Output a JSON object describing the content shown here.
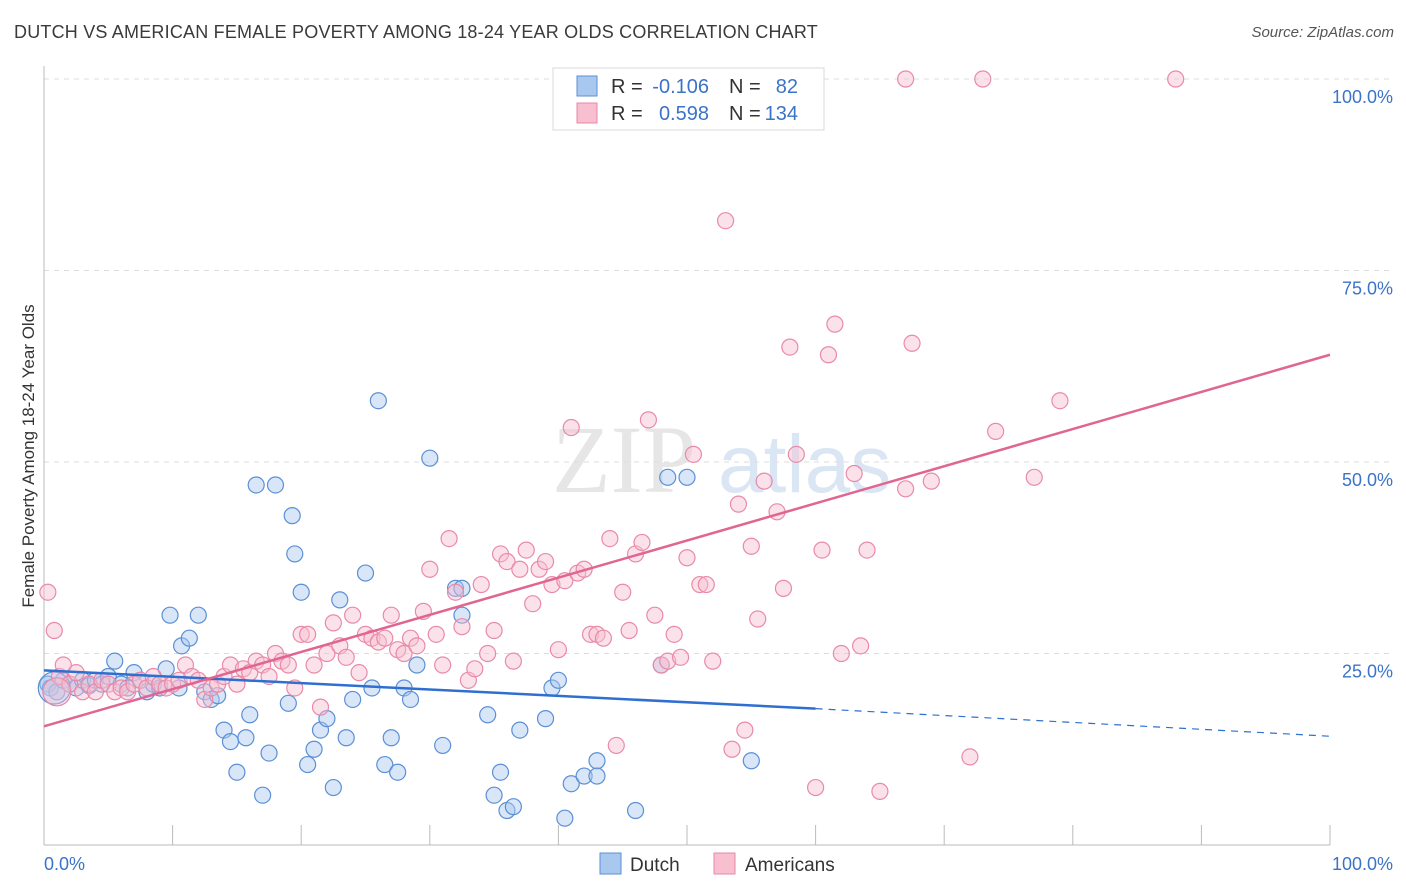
{
  "title": "DUTCH VS AMERICAN FEMALE POVERTY AMONG 18-24 YEAR OLDS CORRELATION CHART",
  "source": "Source: ZipAtlas.com",
  "watermark": {
    "zip": "ZIP",
    "atlas": "atlas"
  },
  "colors": {
    "dutch_fill": "#a9c8f0",
    "dutch_stroke": "#5b8fd6",
    "dutch_line": "#2f6fd0",
    "american_fill": "#f7bfd0",
    "american_stroke": "#e98aa8",
    "american_line": "#e06592",
    "axis_text": "#3b73c9",
    "grid": "#dddddd"
  },
  "legend": {
    "rows": [
      {
        "r_label": "R =",
        "r_value": "-0.106",
        "n_label": "N =",
        "n_value": "82"
      },
      {
        "r_label": "R =",
        "r_value": "0.598",
        "n_label": "N =",
        "n_value": "134"
      }
    ]
  },
  "bottom_legend": [
    "Dutch",
    "Americans"
  ],
  "chart_data": {
    "type": "scatter",
    "title": "DUTCH VS AMERICAN FEMALE POVERTY AMONG 18-24 YEAR OLDS CORRELATION CHART",
    "ylabel": "Female Poverty Among 18-24 Year Olds",
    "xlabel": "",
    "xlim": [
      0,
      100
    ],
    "ylim": [
      0,
      100
    ],
    "x_tick_labels": [
      "0.0%",
      "100.0%"
    ],
    "y_ticks": [
      25,
      50,
      75,
      100
    ],
    "y_tick_labels": [
      "25.0%",
      "50.0%",
      "75.0%",
      "100.0%"
    ],
    "grid": true,
    "legend_position": "top-center",
    "series": [
      {
        "name": "Dutch",
        "r": -0.106,
        "n": 82,
        "trend": {
          "x0": 0,
          "y0": 22.8,
          "x1": 60,
          "y1": 17.8,
          "dashed_to_x": 100,
          "dashed_to_y": 14.2
        },
        "points": [
          [
            0.3,
            21
          ],
          [
            0.5,
            20.5
          ],
          [
            1,
            20
          ],
          [
            1.5,
            21.5
          ],
          [
            2,
            21
          ],
          [
            2.5,
            20.5
          ],
          [
            3,
            21.5
          ],
          [
            3.5,
            20.8
          ],
          [
            4,
            21.5
          ],
          [
            4.5,
            21
          ],
          [
            5,
            22
          ],
          [
            5.5,
            24
          ],
          [
            6,
            21
          ],
          [
            6.5,
            20.5
          ],
          [
            7,
            22.5
          ],
          [
            7.5,
            21.5
          ],
          [
            8,
            20
          ],
          [
            8.5,
            21
          ],
          [
            9,
            20.5
          ],
          [
            9.5,
            23
          ],
          [
            9.8,
            30
          ],
          [
            10.5,
            20.5
          ],
          [
            10.7,
            26
          ],
          [
            11.3,
            27
          ],
          [
            12.5,
            20
          ],
          [
            12,
            30
          ],
          [
            13,
            19
          ],
          [
            13.5,
            19.5
          ],
          [
            14,
            15
          ],
          [
            14.5,
            13.5
          ],
          [
            15,
            9.5
          ],
          [
            15.7,
            14
          ],
          [
            16,
            17
          ],
          [
            16.5,
            47
          ],
          [
            17,
            6.5
          ],
          [
            17.5,
            12
          ],
          [
            18,
            47
          ],
          [
            19,
            18.5
          ],
          [
            19.3,
            43
          ],
          [
            19.5,
            38
          ],
          [
            20,
            33
          ],
          [
            20.5,
            10.5
          ],
          [
            21,
            12.5
          ],
          [
            21.5,
            15
          ],
          [
            22,
            16.5
          ],
          [
            22.5,
            7.5
          ],
          [
            23,
            32
          ],
          [
            23.5,
            14
          ],
          [
            24,
            19
          ],
          [
            25,
            35.5
          ],
          [
            25.5,
            20.5
          ],
          [
            26,
            58
          ],
          [
            26.5,
            10.5
          ],
          [
            27,
            14
          ],
          [
            27.5,
            9.5
          ],
          [
            28,
            20.5
          ],
          [
            28.5,
            19
          ],
          [
            29,
            23.5
          ],
          [
            30,
            50.5
          ],
          [
            31,
            13
          ],
          [
            32,
            33.5
          ],
          [
            32.5,
            33.5
          ],
          [
            32.5,
            30
          ],
          [
            34.5,
            17
          ],
          [
            35,
            6.5
          ],
          [
            35.5,
            9.5
          ],
          [
            36,
            4.5
          ],
          [
            37,
            15
          ],
          [
            39,
            16.5
          ],
          [
            39.5,
            20.5
          ],
          [
            40,
            21.5
          ],
          [
            40.5,
            3.5
          ],
          [
            41,
            8
          ],
          [
            42,
            9
          ],
          [
            43,
            11
          ],
          [
            43,
            9
          ],
          [
            46,
            4.5
          ],
          [
            48,
            23.5
          ],
          [
            48.5,
            48
          ],
          [
            50,
            48
          ],
          [
            55,
            11
          ],
          [
            36.5,
            5
          ]
        ]
      },
      {
        "name": "Americans",
        "r": 0.598,
        "n": 134,
        "trend": {
          "x0": 0,
          "y0": 15.5,
          "x1": 100,
          "y1": 64
        },
        "points": [
          [
            0.3,
            33
          ],
          [
            0.8,
            28
          ],
          [
            1.2,
            22
          ],
          [
            1.5,
            23.5
          ],
          [
            2,
            21
          ],
          [
            2.5,
            22.5
          ],
          [
            3,
            20
          ],
          [
            3.5,
            21
          ],
          [
            4,
            20
          ],
          [
            4.5,
            21.5
          ],
          [
            5,
            21
          ],
          [
            5.5,
            20
          ],
          [
            6,
            20.5
          ],
          [
            6.5,
            20
          ],
          [
            7,
            21
          ],
          [
            7.5,
            21.5
          ],
          [
            8,
            20.5
          ],
          [
            8.5,
            22
          ],
          [
            9,
            21
          ],
          [
            9.5,
            20.5
          ],
          [
            10,
            21
          ],
          [
            10.5,
            21.5
          ],
          [
            11,
            23.5
          ],
          [
            11.5,
            22
          ],
          [
            12,
            21.5
          ],
          [
            12.5,
            19
          ],
          [
            13,
            20.5
          ],
          [
            13.5,
            21
          ],
          [
            14,
            22
          ],
          [
            14.5,
            23.5
          ],
          [
            15,
            21
          ],
          [
            15.5,
            23
          ],
          [
            16,
            22.5
          ],
          [
            16.5,
            24
          ],
          [
            17,
            23.5
          ],
          [
            17.5,
            22
          ],
          [
            18,
            25
          ],
          [
            18.5,
            24
          ],
          [
            19,
            23.5
          ],
          [
            19.5,
            20.5
          ],
          [
            20,
            27.5
          ],
          [
            20.5,
            27.5
          ],
          [
            21,
            23.5
          ],
          [
            21.5,
            18
          ],
          [
            22,
            25
          ],
          [
            22.5,
            29
          ],
          [
            23,
            26
          ],
          [
            23.5,
            24.5
          ],
          [
            24,
            30
          ],
          [
            24.5,
            22.5
          ],
          [
            25,
            27.5
          ],
          [
            25.5,
            27
          ],
          [
            26,
            26.5
          ],
          [
            26.5,
            27
          ],
          [
            27,
            30
          ],
          [
            27.5,
            25.5
          ],
          [
            28,
            25
          ],
          [
            28.5,
            27
          ],
          [
            29,
            26
          ],
          [
            29.5,
            30.5
          ],
          [
            30,
            36
          ],
          [
            30.5,
            27.5
          ],
          [
            31,
            23.5
          ],
          [
            31.5,
            40
          ],
          [
            32,
            33
          ],
          [
            32.5,
            28.5
          ],
          [
            33,
            21.5
          ],
          [
            33.5,
            23
          ],
          [
            34,
            34
          ],
          [
            34.5,
            25
          ],
          [
            35,
            28
          ],
          [
            35.5,
            38
          ],
          [
            36,
            37
          ],
          [
            36.5,
            24
          ],
          [
            37,
            36
          ],
          [
            37.5,
            38.5
          ],
          [
            38,
            31.5
          ],
          [
            38.5,
            36
          ],
          [
            39,
            37
          ],
          [
            39.5,
            34
          ],
          [
            40,
            25.5
          ],
          [
            40.5,
            34.5
          ],
          [
            41,
            54.5
          ],
          [
            41.5,
            35.5
          ],
          [
            42,
            36
          ],
          [
            42.5,
            27.5
          ],
          [
            43,
            27.5
          ],
          [
            43.5,
            27
          ],
          [
            44,
            40
          ],
          [
            44.5,
            13
          ],
          [
            45,
            33
          ],
          [
            45.5,
            28
          ],
          [
            46,
            38
          ],
          [
            46.5,
            39.5
          ],
          [
            47,
            55.5
          ],
          [
            47.5,
            30
          ],
          [
            48,
            23.5
          ],
          [
            48.5,
            24
          ],
          [
            49,
            27.5
          ],
          [
            49.5,
            24.5
          ],
          [
            50,
            37.5
          ],
          [
            50.5,
            51
          ],
          [
            51,
            34
          ],
          [
            51.5,
            34
          ],
          [
            52,
            24
          ],
          [
            53,
            81.5
          ],
          [
            53.5,
            12.5
          ],
          [
            54,
            44.5
          ],
          [
            54.5,
            15
          ],
          [
            55,
            39
          ],
          [
            55.5,
            29.5
          ],
          [
            56,
            47.5
          ],
          [
            57,
            43.5
          ],
          [
            57.5,
            33.5
          ],
          [
            58,
            65
          ],
          [
            58.5,
            51
          ],
          [
            60,
            7.5
          ],
          [
            60.5,
            38.5
          ],
          [
            61,
            64
          ],
          [
            61.5,
            68
          ],
          [
            62,
            25
          ],
          [
            63,
            48.5
          ],
          [
            63.5,
            26
          ],
          [
            64,
            38.5
          ],
          [
            65,
            7
          ],
          [
            67,
            46.5
          ],
          [
            67.5,
            65.5
          ],
          [
            69,
            47.5
          ],
          [
            72,
            11.5
          ],
          [
            74,
            54
          ],
          [
            77,
            48
          ],
          [
            79,
            58
          ],
          [
            60,
            100
          ],
          [
            67,
            100
          ],
          [
            73,
            100
          ],
          [
            88,
            100
          ]
        ]
      }
    ]
  }
}
